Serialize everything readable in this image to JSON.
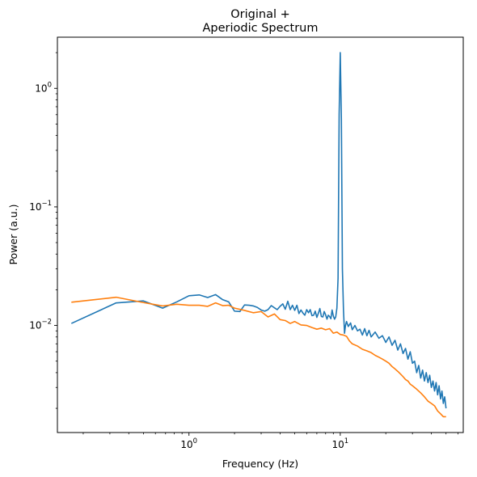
{
  "chart_data": {
    "type": "line",
    "title_lines": [
      "Original +",
      "Aperiodic Spectrum"
    ],
    "xlabel": "Frequency (Hz)",
    "ylabel": "Power (a.u.)",
    "xscale": "log",
    "yscale": "log",
    "xlim": [
      0.135,
      65
    ],
    "ylim": [
      0.00125,
      2.7
    ],
    "grid": false,
    "legend": "none",
    "x_ticks": [
      {
        "value": 1,
        "base": "10",
        "exp": "0"
      },
      {
        "value": 10,
        "base": "10",
        "exp": "1"
      }
    ],
    "y_ticks": [
      {
        "value": 0.01,
        "base": "10",
        "exp": "−2"
      },
      {
        "value": 0.1,
        "base": "10",
        "exp": "−1"
      },
      {
        "value": 1,
        "base": "10",
        "exp": "0"
      }
    ],
    "series": [
      {
        "color": "#1f77b4",
        "points": [
          [
            0.167,
            0.0104
          ],
          [
            0.33,
            0.0155
          ],
          [
            0.5,
            0.0161
          ],
          [
            0.67,
            0.014
          ],
          [
            0.83,
            0.0158
          ],
          [
            1.0,
            0.0178
          ],
          [
            1.17,
            0.0181
          ],
          [
            1.33,
            0.0172
          ],
          [
            1.5,
            0.0182
          ],
          [
            1.67,
            0.0165
          ],
          [
            1.83,
            0.0158
          ],
          [
            2.0,
            0.0132
          ],
          [
            2.17,
            0.0131
          ],
          [
            2.33,
            0.0149
          ],
          [
            2.5,
            0.0148
          ],
          [
            2.67,
            0.0146
          ],
          [
            2.83,
            0.0142
          ],
          [
            3.0,
            0.0135
          ],
          [
            3.17,
            0.0132
          ],
          [
            3.33,
            0.0136
          ],
          [
            3.5,
            0.0147
          ],
          [
            3.67,
            0.0141
          ],
          [
            3.83,
            0.0136
          ],
          [
            4.0,
            0.0145
          ],
          [
            4.17,
            0.0152
          ],
          [
            4.33,
            0.0137
          ],
          [
            4.5,
            0.016
          ],
          [
            4.67,
            0.0136
          ],
          [
            4.83,
            0.0148
          ],
          [
            5.0,
            0.0134
          ],
          [
            5.17,
            0.0148
          ],
          [
            5.33,
            0.0126
          ],
          [
            5.5,
            0.0135
          ],
          [
            5.67,
            0.0127
          ],
          [
            5.83,
            0.0122
          ],
          [
            6.0,
            0.0136
          ],
          [
            6.17,
            0.0128
          ],
          [
            6.33,
            0.0136
          ],
          [
            6.5,
            0.0121
          ],
          [
            6.67,
            0.0122
          ],
          [
            6.83,
            0.0132
          ],
          [
            7.0,
            0.0117
          ],
          [
            7.17,
            0.0127
          ],
          [
            7.33,
            0.0139
          ],
          [
            7.5,
            0.0119
          ],
          [
            7.67,
            0.0118
          ],
          [
            7.83,
            0.0131
          ],
          [
            8.0,
            0.0123
          ],
          [
            8.17,
            0.0113
          ],
          [
            8.33,
            0.0122
          ],
          [
            8.5,
            0.0119
          ],
          [
            8.67,
            0.0114
          ],
          [
            8.83,
            0.0135
          ],
          [
            9.0,
            0.012
          ],
          [
            9.17,
            0.0113
          ],
          [
            9.33,
            0.0118
          ],
          [
            9.5,
            0.014
          ],
          [
            9.67,
            0.025
          ],
          [
            9.83,
            0.6
          ],
          [
            10.0,
            2.0
          ],
          [
            10.17,
            0.55
          ],
          [
            10.33,
            0.03
          ],
          [
            10.5,
            0.0135
          ],
          [
            10.67,
            0.0086
          ],
          [
            10.83,
            0.01
          ],
          [
            11.0,
            0.0108
          ],
          [
            11.3,
            0.0098
          ],
          [
            11.7,
            0.0105
          ],
          [
            12.0,
            0.0092
          ],
          [
            12.5,
            0.01
          ],
          [
            13.0,
            0.009
          ],
          [
            13.5,
            0.0093
          ],
          [
            14.0,
            0.0083
          ],
          [
            14.5,
            0.0094
          ],
          [
            15.0,
            0.0082
          ],
          [
            15.5,
            0.0091
          ],
          [
            16.0,
            0.008
          ],
          [
            17.0,
            0.0088
          ],
          [
            18.0,
            0.0078
          ],
          [
            19.0,
            0.0082
          ],
          [
            20.0,
            0.0072
          ],
          [
            21.0,
            0.008
          ],
          [
            22.0,
            0.0068
          ],
          [
            23.0,
            0.0075
          ],
          [
            24.0,
            0.0062
          ],
          [
            25.0,
            0.007
          ],
          [
            26.0,
            0.0058
          ],
          [
            27.0,
            0.0064
          ],
          [
            28.0,
            0.0052
          ],
          [
            29.0,
            0.006
          ],
          [
            30.0,
            0.0048
          ],
          [
            31.0,
            0.005
          ],
          [
            32.0,
            0.004
          ],
          [
            33.0,
            0.0046
          ],
          [
            34.0,
            0.0036
          ],
          [
            35.0,
            0.0042
          ],
          [
            36.0,
            0.0034
          ],
          [
            37.0,
            0.004
          ],
          [
            38.0,
            0.0033
          ],
          [
            39.0,
            0.0038
          ],
          [
            40.0,
            0.003
          ],
          [
            41.0,
            0.0034
          ],
          [
            42.0,
            0.0028
          ],
          [
            43.0,
            0.0033
          ],
          [
            44.0,
            0.0026
          ],
          [
            45.0,
            0.0031
          ],
          [
            46.0,
            0.0024
          ],
          [
            47.0,
            0.0028
          ],
          [
            48.0,
            0.0022
          ],
          [
            49.0,
            0.0025
          ],
          [
            50.0,
            0.002
          ]
        ]
      },
      {
        "color": "#ff7f0e",
        "points": [
          [
            0.167,
            0.0157
          ],
          [
            0.33,
            0.0173
          ],
          [
            0.5,
            0.0156
          ],
          [
            0.67,
            0.0146
          ],
          [
            0.83,
            0.0151
          ],
          [
            1.0,
            0.0148
          ],
          [
            1.17,
            0.0148
          ],
          [
            1.33,
            0.0145
          ],
          [
            1.5,
            0.0155
          ],
          [
            1.67,
            0.0147
          ],
          [
            1.83,
            0.0148
          ],
          [
            2.0,
            0.014
          ],
          [
            2.33,
            0.0134
          ],
          [
            2.67,
            0.0128
          ],
          [
            3.0,
            0.0131
          ],
          [
            3.33,
            0.0118
          ],
          [
            3.67,
            0.0125
          ],
          [
            4.0,
            0.0112
          ],
          [
            4.33,
            0.011
          ],
          [
            4.67,
            0.0104
          ],
          [
            5.0,
            0.0108
          ],
          [
            5.5,
            0.0101
          ],
          [
            6.0,
            0.01
          ],
          [
            6.5,
            0.0096
          ],
          [
            7.0,
            0.0093
          ],
          [
            7.5,
            0.0095
          ],
          [
            8.0,
            0.0092
          ],
          [
            8.5,
            0.0094
          ],
          [
            9.0,
            0.0086
          ],
          [
            9.5,
            0.0088
          ],
          [
            10.0,
            0.0084
          ],
          [
            10.5,
            0.0083
          ],
          [
            11.0,
            0.0081
          ],
          [
            11.5,
            0.0074
          ],
          [
            12.0,
            0.007
          ],
          [
            13.0,
            0.0067
          ],
          [
            14.0,
            0.0063
          ],
          [
            15.0,
            0.0061
          ],
          [
            16.0,
            0.0059
          ],
          [
            17.0,
            0.0056
          ],
          [
            18.0,
            0.0054
          ],
          [
            19.0,
            0.0052
          ],
          [
            20.0,
            0.005
          ],
          [
            21.0,
            0.0048
          ],
          [
            22.0,
            0.0045
          ],
          [
            23.0,
            0.0043
          ],
          [
            24.0,
            0.0041
          ],
          [
            25.0,
            0.0039
          ],
          [
            26.0,
            0.0037
          ],
          [
            27.0,
            0.0035
          ],
          [
            28.0,
            0.0034
          ],
          [
            29.0,
            0.0032
          ],
          [
            30.0,
            0.0031
          ],
          [
            32.0,
            0.0029
          ],
          [
            34.0,
            0.0027
          ],
          [
            36.0,
            0.0025
          ],
          [
            38.0,
            0.0023
          ],
          [
            40.0,
            0.0022
          ],
          [
            42.0,
            0.0021
          ],
          [
            44.0,
            0.0019
          ],
          [
            46.0,
            0.0018
          ],
          [
            48.0,
            0.0017
          ],
          [
            50.0,
            0.0017
          ]
        ]
      }
    ]
  }
}
